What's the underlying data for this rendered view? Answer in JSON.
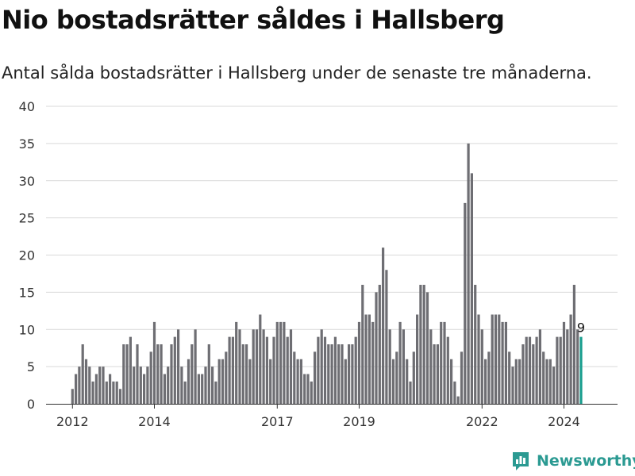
{
  "title": "Nio bostadsrätter såldes i Hallsberg",
  "subtitle": "Antal sålda bostadsrätter i Hallsberg under de senaste tre månaderna.",
  "brand": {
    "name": "Newsworthy",
    "icon": "newsworthy-logo-icon",
    "color": "#2b9a92"
  },
  "chart_data": {
    "type": "bar",
    "ylim": [
      0,
      40
    ],
    "yticks": [
      0,
      5,
      10,
      15,
      20,
      25,
      30,
      35,
      40
    ],
    "xticks": [
      {
        "label": "2012",
        "index": 0
      },
      {
        "label": "2014",
        "index": 24
      },
      {
        "label": "2017",
        "index": 60
      },
      {
        "label": "2019",
        "index": 84
      },
      {
        "label": "2022",
        "index": 120
      },
      {
        "label": "2024",
        "index": 144
      }
    ],
    "grid": true,
    "colors": {
      "bar": "#6e6e73",
      "highlight": "#1a9e8f",
      "grid": "#d9d9d9"
    },
    "highlight_label": "9",
    "values": [
      2,
      4,
      5,
      8,
      6,
      5,
      3,
      4,
      5,
      5,
      3,
      4,
      3,
      3,
      2,
      8,
      8,
      9,
      5,
      8,
      5,
      4,
      5,
      7,
      11,
      8,
      8,
      4,
      5,
      8,
      9,
      10,
      5,
      3,
      6,
      8,
      10,
      4,
      4,
      5,
      8,
      5,
      3,
      6,
      6,
      7,
      9,
      9,
      11,
      10,
      8,
      8,
      6,
      10,
      10,
      12,
      10,
      9,
      6,
      9,
      11,
      11,
      11,
      9,
      10,
      7,
      6,
      6,
      4,
      4,
      3,
      7,
      9,
      10,
      9,
      8,
      8,
      9,
      8,
      8,
      6,
      8,
      8,
      9,
      11,
      16,
      12,
      12,
      11,
      15,
      16,
      21,
      18,
      10,
      6,
      7,
      11,
      10,
      6,
      3,
      7,
      12,
      16,
      16,
      15,
      10,
      8,
      8,
      11,
      11,
      9,
      6,
      3,
      1,
      7,
      27,
      35,
      31,
      16,
      12,
      10,
      6,
      7,
      12,
      12,
      12,
      11,
      11,
      7,
      5,
      6,
      6,
      8,
      9,
      9,
      8,
      9,
      10,
      7,
      6,
      6,
      5,
      9,
      9,
      11,
      10,
      12,
      16,
      10,
      9
    ]
  }
}
